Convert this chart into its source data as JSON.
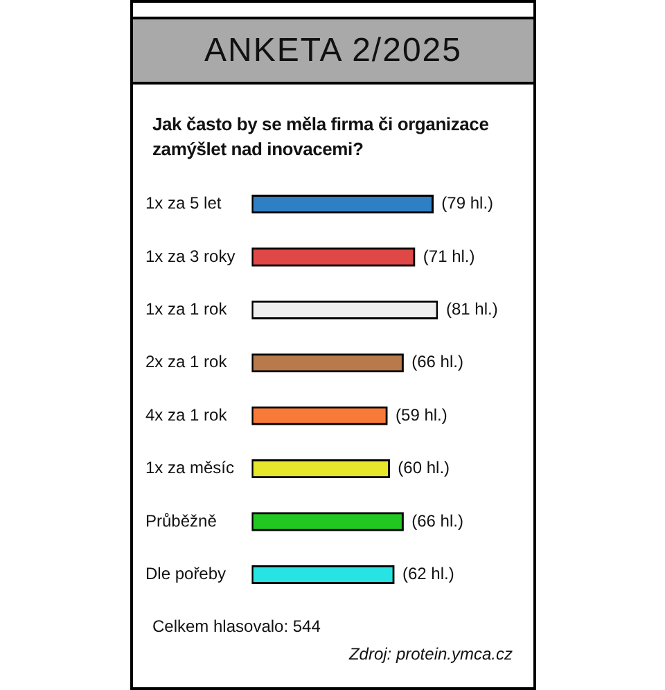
{
  "chart_data": {
    "type": "bar",
    "orientation": "horizontal",
    "title": "ANKETA 2/2025",
    "subtitle": "Jak často by se měla firma či organizace zamýšlet nad inovacemi?",
    "categories": [
      "1x za 5 let",
      "1x za 3 roky",
      "1x za 1 rok",
      "2x za 1 rok",
      "4x za 1 rok",
      "1x za měsíc",
      "Průběžně",
      "Dle pořeby"
    ],
    "values": [
      79,
      71,
      81,
      66,
      59,
      60,
      66,
      62
    ],
    "colors": [
      "#2f7fc4",
      "#e04848",
      "#efefef",
      "#b87a4b",
      "#f87a38",
      "#e6e62a",
      "#22c822",
      "#27e3e3"
    ],
    "value_labels": [
      "(79 hl.)",
      "(71 hl.)",
      "(81 hl.)",
      "(66 hl.)",
      "(59 hl.)",
      "(60 hl.)",
      "(66 hl.)",
      "(62 hl.)"
    ],
    "annotations": [
      "Celkem hlasovalo: 544",
      "Zdroj: protein.ymca.cz"
    ]
  }
}
